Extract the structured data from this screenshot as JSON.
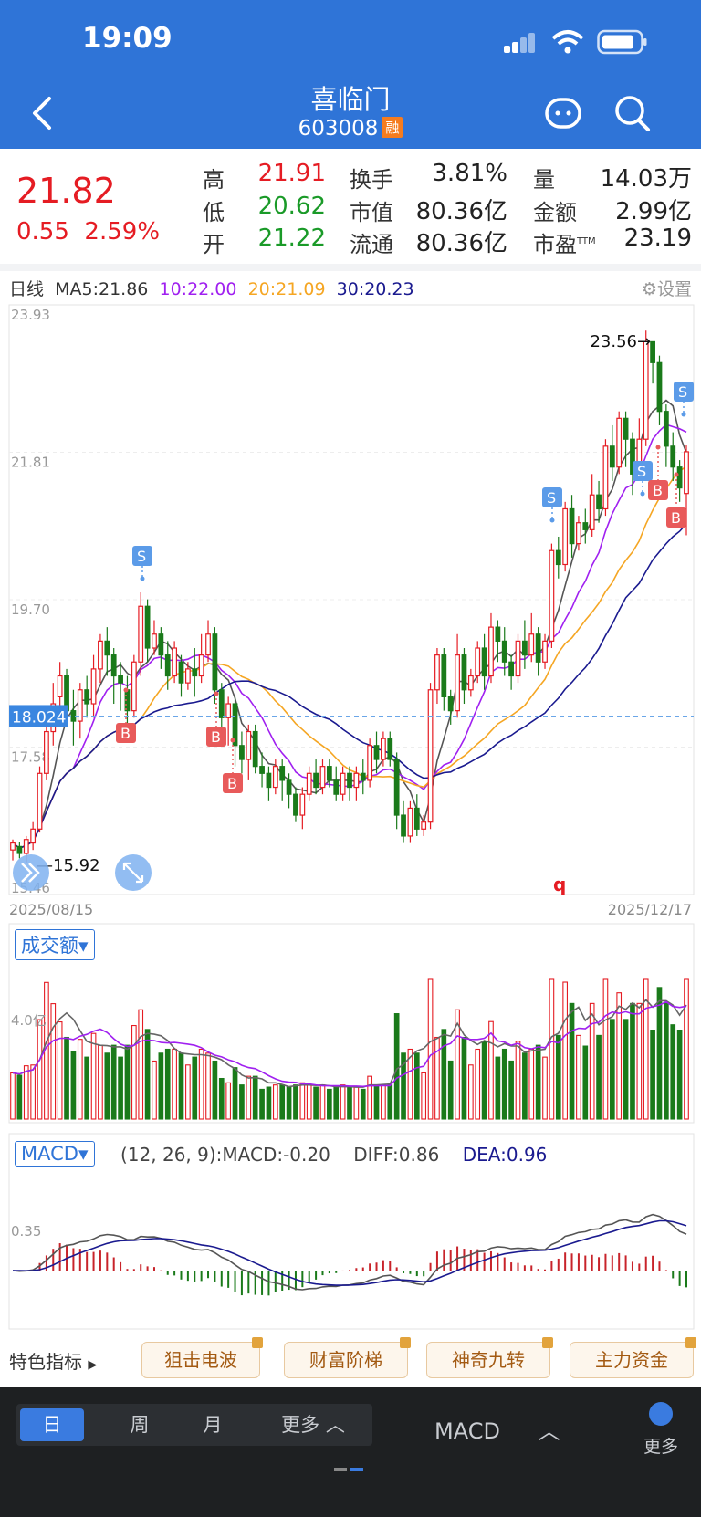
{
  "status_bar": {
    "time": "19:09"
  },
  "header": {
    "title": "喜临门",
    "code": "603008",
    "margin_badge": "融"
  },
  "quote": {
    "price": "21.82",
    "change": "0.55",
    "change_pct": "2.59%",
    "fields": [
      {
        "label": "高",
        "value": "21.91",
        "color": "#e51c23"
      },
      {
        "label": "换手",
        "value": "3.81%",
        "color": "#222222"
      },
      {
        "label": "量",
        "value": "14.03万",
        "color": "#222222"
      },
      {
        "label": "低",
        "value": "20.62",
        "color": "#1a9a28"
      },
      {
        "label": "市值",
        "value": "80.36亿",
        "color": "#222222"
      },
      {
        "label": "金额",
        "value": "2.99亿",
        "color": "#222222"
      },
      {
        "label": "开",
        "value": "21.22",
        "color": "#1a9a28"
      },
      {
        "label": "流通",
        "value": "80.36亿",
        "color": "#222222"
      },
      {
        "label": "市盈",
        "value": "23.19",
        "color": "#222222"
      }
    ],
    "pe_sup": "TTM"
  },
  "kline": {
    "period_label": "日线",
    "ma": [
      {
        "text": "MA5:21.86",
        "color": "#333333"
      },
      {
        "text": "10:22.00",
        "color": "#a020f0"
      },
      {
        "text": "20:21.09",
        "color": "#f5a623"
      },
      {
        "text": "30:20.23",
        "color": "#1a1a8f"
      }
    ],
    "settings_label": "设置",
    "y_ticks": [
      "23.93",
      "21.81",
      "19.70",
      "17.58",
      "15.46"
    ],
    "current_price_tag": "18.024",
    "high_marker": "23.56→",
    "low_marker": "—15.92",
    "date_start": "2025/08/15",
    "date_end": "2025/12/17",
    "signals": [
      {
        "type": "S"
      },
      {
        "type": "S"
      },
      {
        "type": "S"
      },
      {
        "type": "S"
      },
      {
        "type": "B"
      },
      {
        "type": "B"
      },
      {
        "type": "B"
      },
      {
        "type": "B"
      },
      {
        "type": "B"
      }
    ],
    "stray_char": "q"
  },
  "volume": {
    "selector": "成交额",
    "y_tick": "4.0亿"
  },
  "macd": {
    "selector": "MACD",
    "params": "(12, 26, 9):MACD:-0.20",
    "diff": "DIFF:0.86",
    "dea": "DEA:0.96",
    "y_tick": "0.35"
  },
  "features": {
    "special_label": "特色指标",
    "items": [
      "狙击电波",
      "财富阶梯",
      "神奇九转",
      "主力资金"
    ]
  },
  "bottom_bar": {
    "tabs": [
      "日",
      "周",
      "月",
      "更多"
    ],
    "indicator": "MACD",
    "more": "更多"
  },
  "colors": {
    "up": "#e51c23",
    "down": "#1a7a1a",
    "brand": "#2f74d7"
  }
}
